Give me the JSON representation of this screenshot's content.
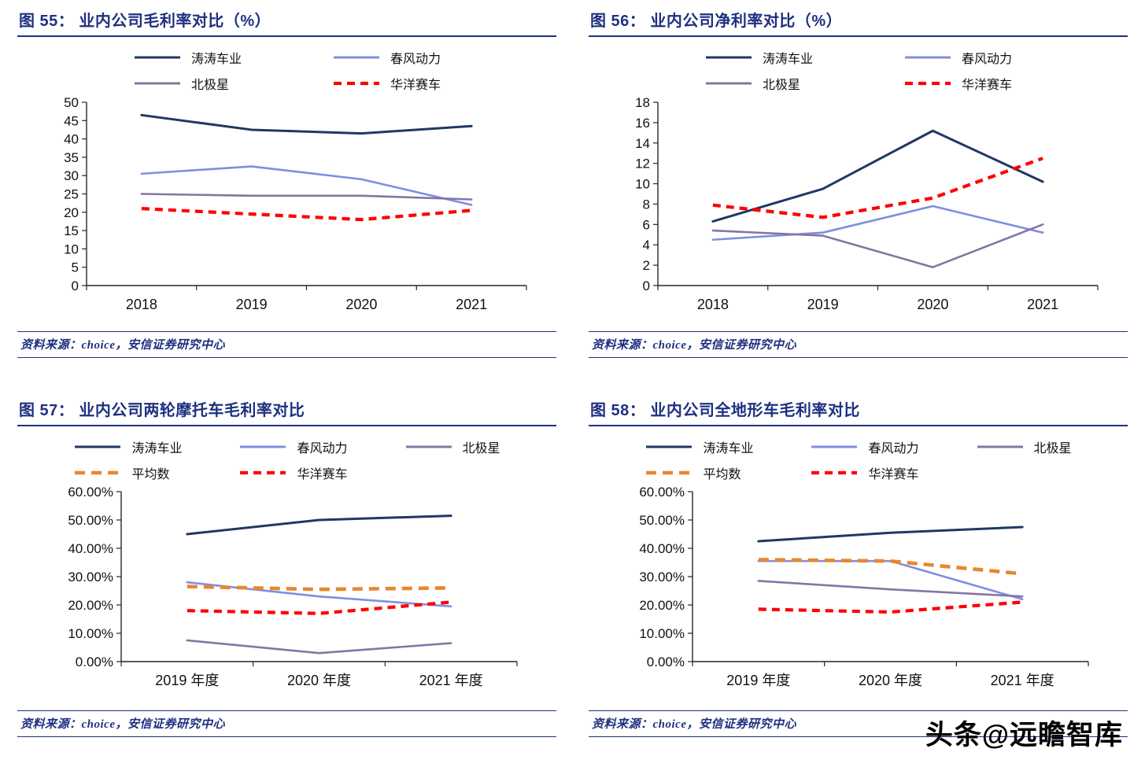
{
  "watermark": "头条@远瞻智库",
  "charts": [
    {
      "key": "fig-55",
      "title": "图 55：  业内公司毛利率对比（%）",
      "source": "资料来源：choice，安信证券研究中心",
      "chart_data": {
        "type": "line",
        "title": "业内公司毛利率对比（%）",
        "xlabel": "",
        "ylabel": "",
        "grid": false,
        "legend_position": "top",
        "categories": [
          "2018",
          "2019",
          "2020",
          "2021"
        ],
        "ylim": [
          0,
          50
        ],
        "ytick_values": [
          0,
          5,
          10,
          15,
          20,
          25,
          30,
          35,
          40,
          45,
          50
        ],
        "ytick_labels": [
          "0",
          "5",
          "10",
          "15",
          "20",
          "25",
          "30",
          "35",
          "40",
          "45",
          "50"
        ],
        "series": [
          {
            "key": "taotao",
            "name": "涛涛车业",
            "color": "#203864",
            "width": 3,
            "dash": "",
            "values": [
              46.5,
              42.5,
              41.5,
              43.5
            ]
          },
          {
            "key": "chunfeng",
            "name": "春风动力",
            "color": "#7E8FE0",
            "width": 2.6,
            "dash": "",
            "values": [
              30.5,
              32.5,
              29.0,
              22.0
            ]
          },
          {
            "key": "polaris",
            "name": "北极星",
            "color": "#8674A4",
            "width": 2.6,
            "dash": "",
            "values": [
              25.0,
              24.5,
              24.5,
              23.5
            ]
          },
          {
            "key": "huayang",
            "name": "华洋赛车",
            "color": "#FF0000",
            "width": 4.2,
            "dash": "10 7",
            "values": [
              21.0,
              19.5,
              18.0,
              20.5
            ]
          }
        ]
      }
    },
    {
      "key": "fig-56",
      "title": "图 56：  业内公司净利率对比（%）",
      "source": "资料来源：choice，安信证券研究中心",
      "chart_data": {
        "type": "line",
        "title": "业内公司净利率对比（%）",
        "xlabel": "",
        "ylabel": "",
        "grid": false,
        "legend_position": "top",
        "categories": [
          "2018",
          "2019",
          "2020",
          "2021"
        ],
        "ylim": [
          0,
          18
        ],
        "ytick_values": [
          0,
          2,
          4,
          6,
          8,
          10,
          12,
          14,
          16,
          18
        ],
        "ytick_labels": [
          "0",
          "2",
          "4",
          "6",
          "8",
          "10",
          "12",
          "14",
          "16",
          "18"
        ],
        "series": [
          {
            "key": "taotao",
            "name": "涛涛车业",
            "color": "#203864",
            "width": 3,
            "dash": "",
            "values": [
              6.3,
              9.5,
              15.2,
              10.2
            ]
          },
          {
            "key": "chunfeng",
            "name": "春风动力",
            "color": "#7E8FE0",
            "width": 2.6,
            "dash": "",
            "values": [
              4.5,
              5.2,
              7.8,
              5.2
            ]
          },
          {
            "key": "polaris",
            "name": "北极星",
            "color": "#8674A4",
            "width": 2.6,
            "dash": "",
            "values": [
              5.4,
              4.9,
              1.8,
              6.0
            ]
          },
          {
            "key": "huayang",
            "name": "华洋赛车",
            "color": "#FF0000",
            "width": 4.2,
            "dash": "10 7",
            "values": [
              7.9,
              6.7,
              8.6,
              12.5
            ]
          }
        ]
      }
    },
    {
      "key": "fig-57",
      "title": "图 57：  业内公司两轮摩托车毛利率对比",
      "source": "资料来源：choice，安信证券研究中心",
      "chart_data": {
        "type": "line",
        "title": "业内公司两轮摩托车毛利率对比",
        "xlabel": "",
        "ylabel": "",
        "grid": false,
        "legend_position": "top",
        "categories": [
          "2019 年度",
          "2020 年度",
          "2021 年度"
        ],
        "ylim": [
          0,
          60
        ],
        "ytick_values": [
          0,
          10,
          20,
          30,
          40,
          50,
          60
        ],
        "ytick_labels": [
          "0.00%",
          "10.00%",
          "20.00%",
          "30.00%",
          "40.00%",
          "50.00%",
          "60.00%"
        ],
        "series": [
          {
            "key": "taotao",
            "name": "涛涛车业",
            "color": "#203864",
            "width": 3,
            "dash": "",
            "values": [
              45.0,
              50.0,
              51.5
            ]
          },
          {
            "key": "chunfeng",
            "name": "春风动力",
            "color": "#7E8FE0",
            "width": 2.6,
            "dash": "",
            "values": [
              28.0,
              23.0,
              19.5
            ]
          },
          {
            "key": "polaris",
            "name": "北极星",
            "color": "#8674A4",
            "width": 2.6,
            "dash": "",
            "values": [
              7.5,
              3.0,
              6.5
            ]
          },
          {
            "key": "average",
            "name": "平均数",
            "color": "#E8872E",
            "width": 4.6,
            "dash": "13 8",
            "values": [
              26.5,
              25.5,
              26.0
            ]
          },
          {
            "key": "huayang",
            "name": "华洋赛车",
            "color": "#FF0000",
            "width": 4.2,
            "dash": "10 7",
            "values": [
              18.0,
              17.0,
              21.0
            ]
          }
        ]
      }
    },
    {
      "key": "fig-58",
      "title": "图 58：  业内公司全地形车毛利率对比",
      "source": "资料来源：choice，安信证券研究中心",
      "chart_data": {
        "type": "line",
        "title": "业内公司全地形车毛利率对比",
        "xlabel": "",
        "ylabel": "",
        "grid": false,
        "legend_position": "top",
        "categories": [
          "2019 年度",
          "2020 年度",
          "2021 年度"
        ],
        "ylim": [
          0,
          60
        ],
        "ytick_values": [
          0,
          10,
          20,
          30,
          40,
          50,
          60
        ],
        "ytick_labels": [
          "0.00%",
          "10.00%",
          "20.00%",
          "30.00%",
          "40.00%",
          "50.00%",
          "60.00%"
        ],
        "series": [
          {
            "key": "taotao",
            "name": "涛涛车业",
            "color": "#203864",
            "width": 3,
            "dash": "",
            "values": [
              42.5,
              45.5,
              47.5
            ]
          },
          {
            "key": "chunfeng",
            "name": "春风动力",
            "color": "#7E8FE0",
            "width": 2.6,
            "dash": "",
            "values": [
              35.5,
              35.5,
              22.0
            ]
          },
          {
            "key": "polaris",
            "name": "北极星",
            "color": "#8674A4",
            "width": 2.6,
            "dash": "",
            "values": [
              28.5,
              25.5,
              23.0
            ]
          },
          {
            "key": "average",
            "name": "平均数",
            "color": "#E8872E",
            "width": 4.6,
            "dash": "13 8",
            "values": [
              36.0,
              35.5,
              31.0
            ]
          },
          {
            "key": "huayang",
            "name": "华洋赛车",
            "color": "#FF0000",
            "width": 4.2,
            "dash": "10 7",
            "values": [
              18.5,
              17.5,
              21.0
            ]
          }
        ]
      }
    }
  ]
}
